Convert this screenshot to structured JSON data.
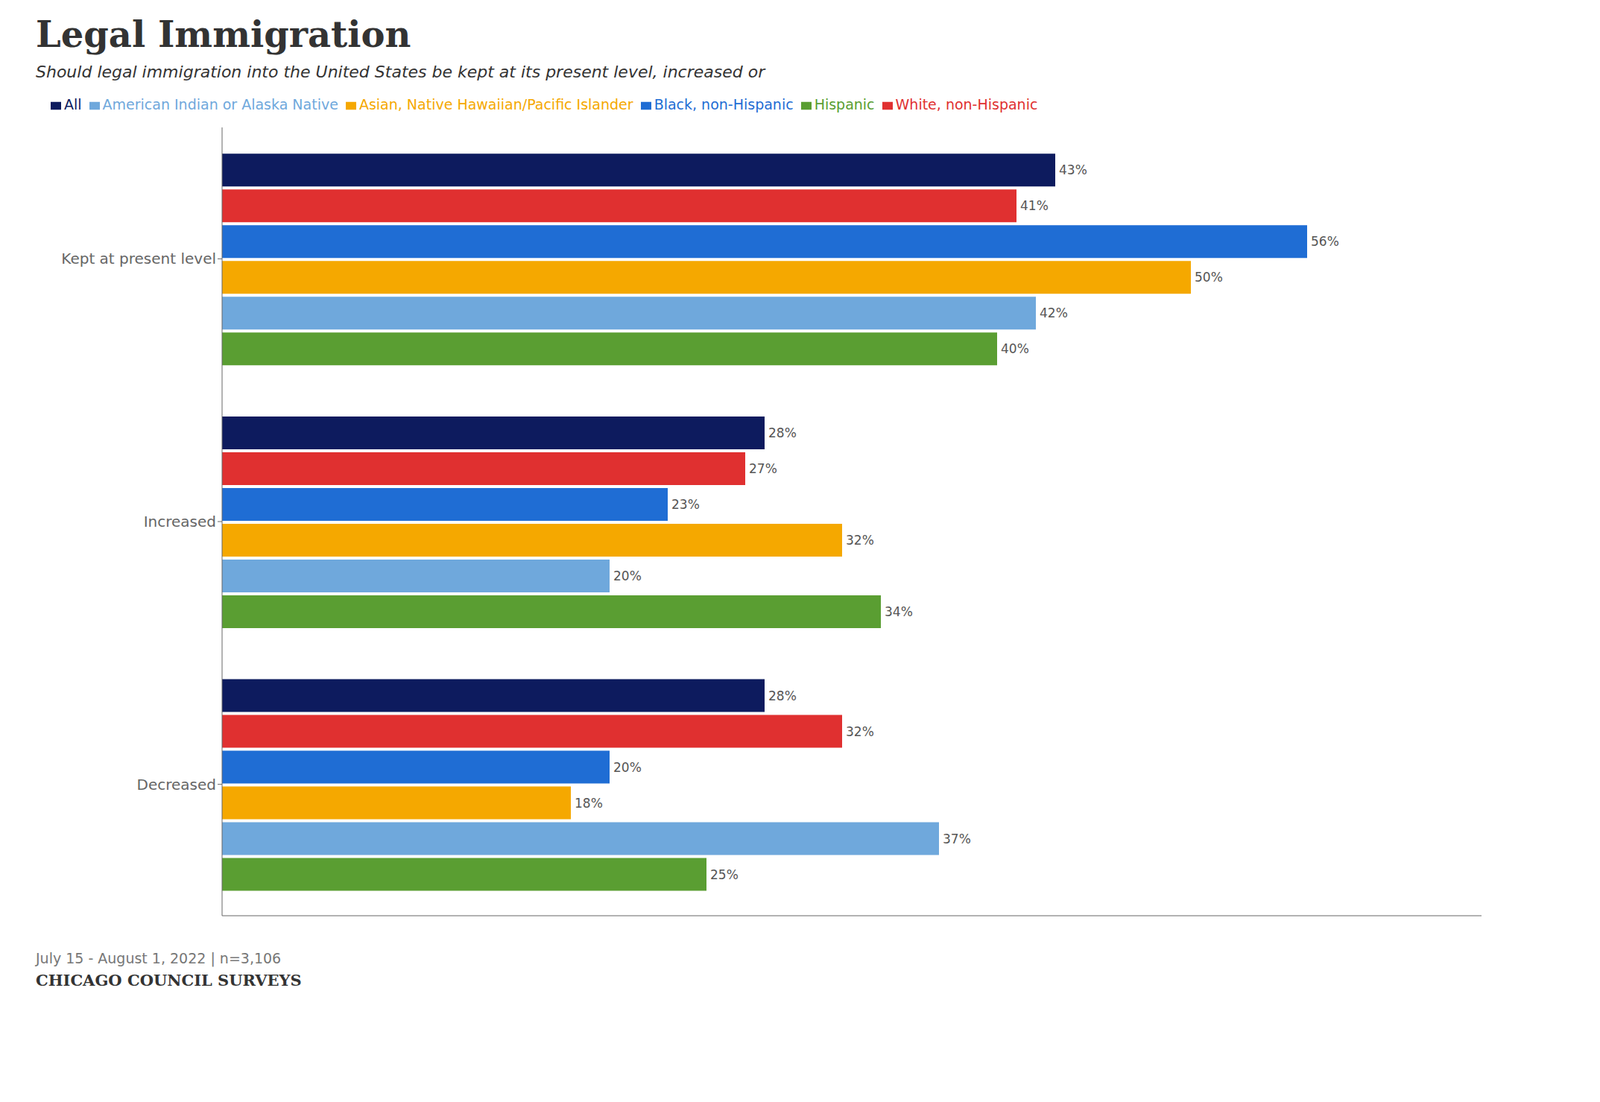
{
  "chart_data": {
    "type": "bar",
    "orientation": "horizontal",
    "title": "Legal Immigration",
    "subtitle": "Should legal immigration into the United States be kept at its present level, increased or",
    "annotations": [
      "July 15 - August 1, 2022 | n=3,106",
      "CHICAGO COUNCIL SURVEYS"
    ],
    "categories": [
      "Kept at present level",
      "Increased",
      "Decreased"
    ],
    "series": [
      {
        "name": "All",
        "color": "#0d1b5e",
        "values": [
          43,
          28,
          28
        ],
        "value_labels": [
          "43%",
          "28%",
          "28%"
        ]
      },
      {
        "name": "White, non-Hispanic",
        "color": "#e03030",
        "values": [
          41,
          27,
          32
        ],
        "value_labels": [
          "41%",
          "27%",
          "32%"
        ]
      },
      {
        "name": "Black, non-Hispanic",
        "color": "#1f6dd4",
        "values": [
          56,
          23,
          20
        ],
        "value_labels": [
          "56%",
          "23%",
          "20%"
        ]
      },
      {
        "name": "Asian, Native Hawaiian/Pacific Islander",
        "color": "#f5a800",
        "values": [
          50,
          32,
          18
        ],
        "value_labels": [
          "50%",
          "32%",
          "18%"
        ]
      },
      {
        "name": "American Indian or Alaska Native",
        "color": "#6fa8dc",
        "values": [
          42,
          20,
          37
        ],
        "value_labels": [
          "42%",
          "20%",
          "37%"
        ]
      },
      {
        "name": "Hispanic",
        "color": "#5a9e32",
        "values": [
          40,
          34,
          25
        ],
        "value_labels": [
          "40%",
          "34%",
          "25%"
        ]
      }
    ],
    "xlim": [
      0,
      65
    ],
    "data_labels": true,
    "tick_labels": "y",
    "grid": false,
    "legend": "top"
  }
}
